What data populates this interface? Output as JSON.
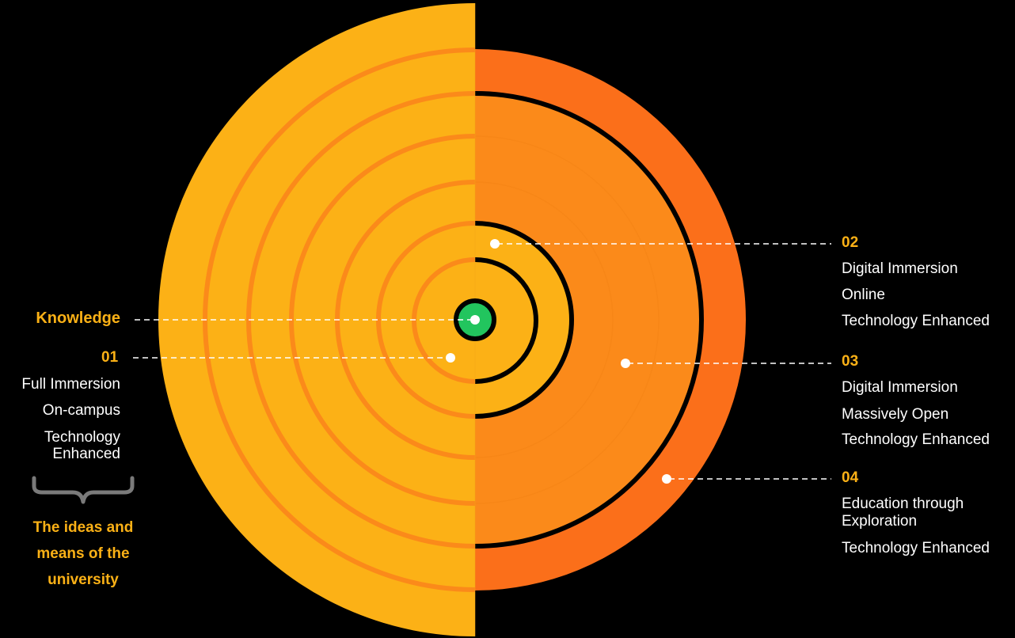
{
  "colors": {
    "background": "#000000",
    "left_half": "#fcb116",
    "right_outer": "#fb6f1a",
    "right_inner": "#fb8a1a",
    "ring_line_left": "#fb8a1a",
    "ring_line_right": "#000000",
    "center": "#22c55e",
    "label_accent": "#fbb116",
    "label_text": "#ffffff"
  },
  "knowledge_label": "Knowledge",
  "sections": [
    {
      "number": "01",
      "items": [
        "Full Immersion",
        "On-campus",
        "Technology\nEnhanced"
      ]
    },
    {
      "number": "02",
      "items": [
        "Digital Immersion",
        "Online",
        "Technology Enhanced"
      ]
    },
    {
      "number": "03",
      "items": [
        "Digital Immersion",
        "Massively Open",
        "Technology Enhanced"
      ]
    },
    {
      "number": "04",
      "items": [
        "Education through\nExploration",
        "Technology Enhanced"
      ]
    }
  ],
  "brace_icon": "curly-brace-icon",
  "ideas_caption": [
    "The ideas and",
    "means of the",
    "university"
  ]
}
